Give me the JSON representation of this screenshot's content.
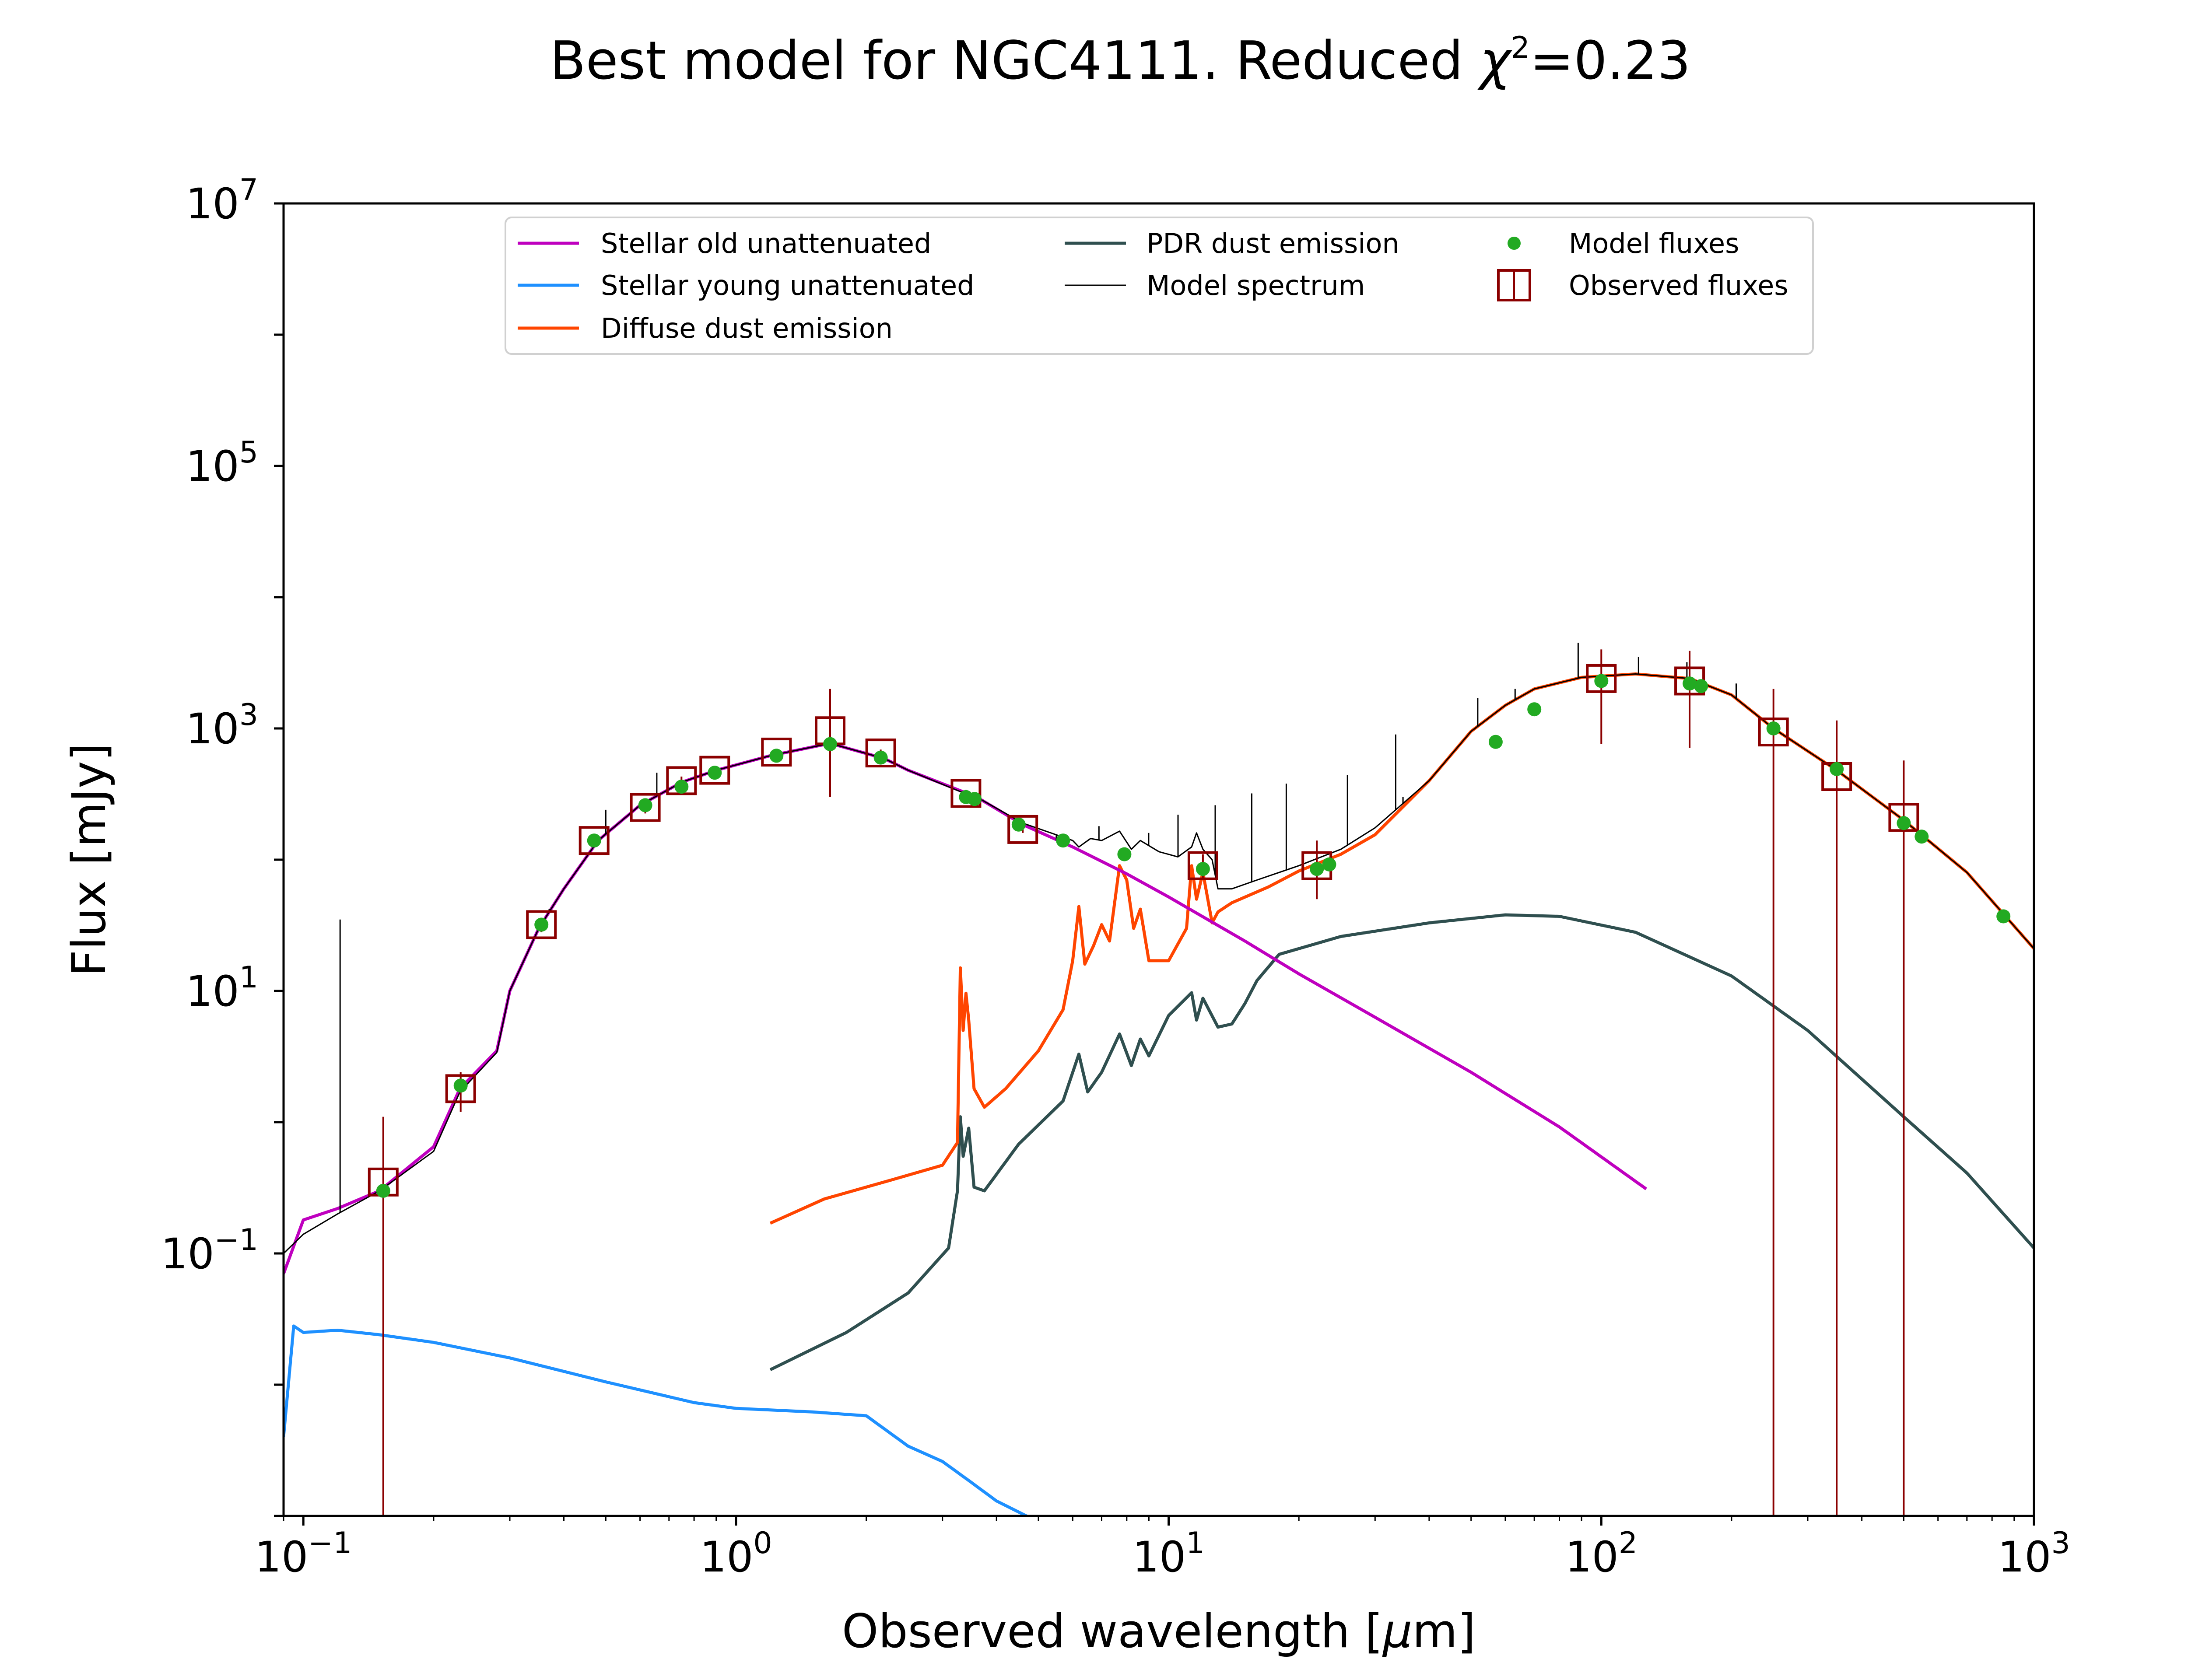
{
  "chart_data": {
    "type": "line",
    "title": "Best model for NGC4111. Reduced χ²=0.23",
    "title_parts": {
      "main": "Best model for NGC4111. Reduced ",
      "chi": "χ",
      "exp": "2",
      "rest": "=0.23"
    },
    "xlabel": "Observed wavelength [μm]",
    "xlabel_parts": {
      "main": "Observed wavelength [",
      "mu": "μ",
      "rest": "m]"
    },
    "ylabel": "Flux [mJy]",
    "xscale": "log",
    "yscale": "log",
    "xlim": [
      0.09,
      1000
    ],
    "ylim": [
      0.001,
      10000000
    ],
    "grid": false,
    "legend_position": "top-center",
    "xticks": [
      {
        "base": "10",
        "exp": "−1",
        "value": 0.1
      },
      {
        "base": "10",
        "exp": "0",
        "value": 1
      },
      {
        "base": "10",
        "exp": "1",
        "value": 10
      },
      {
        "base": "10",
        "exp": "2",
        "value": 100
      },
      {
        "base": "10",
        "exp": "3",
        "value": 1000
      }
    ],
    "yticks": [
      {
        "base": "10",
        "exp": "−1",
        "value": 0.1
      },
      {
        "base": "10",
        "exp": "1",
        "value": 10
      },
      {
        "base": "10",
        "exp": "3",
        "value": 1000
      },
      {
        "base": "10",
        "exp": "5",
        "value": 100000
      },
      {
        "base": "10",
        "exp": "7",
        "value": 10000000
      }
    ],
    "series": [
      {
        "name": "Stellar old unattenuated",
        "color": "#bf00bf",
        "x": [
          0.09,
          0.1,
          0.12,
          0.15,
          0.2,
          0.23,
          0.28,
          0.3,
          0.35,
          0.4,
          0.48,
          0.6,
          0.75,
          0.9,
          1.2,
          1.65,
          2.2,
          2.5,
          3.6,
          4.6,
          6,
          8,
          10,
          15,
          20,
          30,
          50,
          80,
          127
        ],
        "y": [
          0.07,
          0.18,
          0.22,
          0.3,
          0.65,
          1.8,
          3.5,
          10,
          30,
          60,
          140,
          260,
          390,
          480,
          620,
          770,
          590,
          480,
          300,
          185,
          125,
          78,
          52,
          24,
          13.5,
          6.3,
          2.4,
          0.92,
          0.31
        ]
      },
      {
        "name": "Stellar young unattenuated",
        "color": "#1e90ff",
        "x": [
          0.09,
          0.095,
          0.1,
          0.12,
          0.15,
          0.2,
          0.3,
          0.5,
          0.8,
          1.0,
          1.5,
          2.0,
          2.5,
          3.0,
          3.5,
          4.0,
          5.0
        ],
        "y": [
          0.004,
          0.028,
          0.025,
          0.026,
          0.024,
          0.021,
          0.016,
          0.0105,
          0.0073,
          0.0066,
          0.0062,
          0.0058,
          0.0034,
          0.0026,
          0.0018,
          0.0013,
          0.0009
        ]
      },
      {
        "name": "Diffuse dust emission",
        "color": "#ff4500",
        "x": [
          1.2,
          1.6,
          2.2,
          3.0,
          3.25,
          3.3,
          3.35,
          3.4,
          3.45,
          3.55,
          3.75,
          4.2,
          5.0,
          5.7,
          6.0,
          6.2,
          6.4,
          6.7,
          7.0,
          7.3,
          7.7,
          8.0,
          8.3,
          8.6,
          9.0,
          10.0,
          11.0,
          11.3,
          11.6,
          12.0,
          12.6,
          13.0,
          14.0,
          17.0,
          20.0,
          25.0,
          30.0,
          40.0,
          50.0,
          60.0,
          70.0,
          90.0,
          120.0,
          160.0,
          200.0,
          250.0,
          350.0,
          500.0,
          700.0,
          1000.0
        ],
        "y": [
          0.17,
          0.26,
          0.35,
          0.47,
          0.7,
          15,
          5,
          9.6,
          6,
          1.8,
          1.3,
          1.8,
          3.5,
          7.2,
          17,
          44,
          16,
          22,
          32,
          24,
          90,
          70,
          30,
          42,
          17,
          17,
          30,
          90,
          50,
          80,
          33,
          40,
          47,
          62,
          82,
          110,
          155,
          400,
          950,
          1500,
          2000,
          2450,
          2600,
          2400,
          1800,
          1000,
          480,
          200,
          80,
          21
        ]
      },
      {
        "name": "PDR dust emission",
        "color": "#2f4f4f",
        "x": [
          1.2,
          1.8,
          2.5,
          3.1,
          3.25,
          3.3,
          3.35,
          3.45,
          3.55,
          3.75,
          4.5,
          5.7,
          6.2,
          6.5,
          7.0,
          7.7,
          8.2,
          8.6,
          9.0,
          10.0,
          11.3,
          11.6,
          12.0,
          13.0,
          14.0,
          15.0,
          16.0,
          18.0,
          25.0,
          40.0,
          60.0,
          80.0,
          120.0,
          200.0,
          300.0,
          500.0,
          700.0,
          1000.0
        ],
        "y": [
          0.013,
          0.025,
          0.05,
          0.11,
          0.3,
          1.1,
          0.55,
          0.9,
          0.32,
          0.3,
          0.68,
          1.45,
          3.3,
          1.7,
          2.4,
          4.7,
          2.7,
          4.3,
          3.2,
          6.5,
          9.7,
          6,
          8.8,
          5.3,
          5.6,
          8,
          12,
          19,
          26,
          33,
          38,
          37,
          28,
          13,
          5,
          1.1,
          0.41,
          0.11
        ]
      },
      {
        "name": "Model spectrum",
        "color": "#000000",
        "x": [
          0.09,
          0.1,
          0.12,
          0.15,
          0.2,
          0.23,
          0.28,
          0.3,
          0.35,
          0.4,
          0.48,
          0.6,
          0.75,
          0.9,
          1.2,
          1.65,
          2.2,
          2.5,
          3.3,
          3.6,
          4.6,
          6.0,
          6.2,
          6.6,
          7.0,
          7.7,
          8.2,
          8.6,
          9.5,
          10.5,
          11.3,
          11.6,
          12.0,
          12.6,
          13.0,
          14.0,
          16.0,
          20.0,
          25.0,
          30.0,
          40.0,
          50.0,
          60.0,
          70.0,
          90.0,
          120.0,
          160.0,
          200.0,
          250.0,
          350.0,
          500.0,
          700.0,
          1000.0
        ],
        "y": [
          0.1,
          0.14,
          0.2,
          0.3,
          0.6,
          1.7,
          3.4,
          10,
          30,
          60,
          140,
          260,
          390,
          480,
          620,
          770,
          590,
          480,
          330,
          300,
          190,
          140,
          125,
          145,
          140,
          165,
          120,
          140,
          115,
          105,
          125,
          160,
          120,
          100,
          60,
          60,
          70,
          90,
          120,
          175,
          400,
          950,
          1500,
          2000,
          2450,
          2600,
          2400,
          1800,
          1000,
          480,
          200,
          80,
          21
        ]
      }
    ],
    "emission_lines": {
      "name": "Model spectrum lines",
      "x": [
        0.1216,
        0.37,
        0.5,
        0.656,
        5.5,
        6.9,
        8.99,
        10.51,
        12.81,
        15.56,
        18.7,
        25.9,
        33.48,
        34.8,
        51.8,
        63.2,
        88.4,
        121.9,
        157.7,
        205.0
      ],
      "ytop": [
        35,
        42,
        240,
        460,
        140,
        180,
        160,
        220,
        260,
        320,
        380,
        440,
        900,
        300,
        1700,
        2000,
        4500,
        3500,
        3200,
        2200
      ]
    },
    "model_fluxes": {
      "name": "Model fluxes",
      "color": "#22aa22",
      "x": [
        0.153,
        0.231,
        0.355,
        0.47,
        0.617,
        0.748,
        0.893,
        1.24,
        1.65,
        2.16,
        3.4,
        3.56,
        4.5,
        5.7,
        7.9,
        12.0,
        22.0,
        23.5,
        57.0,
        70.0,
        100.0,
        160.0,
        170.0,
        250.0,
        350.0,
        500.0,
        550.0,
        850.0
      ],
      "y": [
        0.3,
        1.9,
        32,
        140,
        260,
        360,
        460,
        620,
        760,
        600,
        300,
        290,
        185,
        140,
        110,
        85,
        85,
        92,
        790,
        1400,
        2300,
        2200,
        2100,
        1000,
        490,
        190,
        150,
        37
      ]
    },
    "observed_fluxes": {
      "name": "Observed fluxes",
      "color": "#8b0000",
      "x": [
        0.153,
        0.231,
        0.355,
        0.47,
        0.617,
        0.748,
        0.893,
        1.24,
        1.65,
        2.16,
        3.4,
        4.6,
        12.0,
        22.0,
        100.0,
        160.0,
        250.0,
        350.0,
        500.0
      ],
      "y": [
        0.35,
        1.8,
        32,
        140,
        250,
        400,
        480,
        660,
        960,
        650,
        320,
        170,
        90,
        90,
        2400,
        2300,
        940,
        430,
        210
      ],
      "err_low": [
        0.001,
        1.2,
        28,
        125,
        225,
        370,
        450,
        620,
        300,
        610,
        300,
        160,
        70,
        50,
        760,
        710,
        0.001,
        0.001,
        0.001
      ],
      "err_high": [
        1.1,
        2.4,
        36,
        155,
        275,
        430,
        510,
        700,
        2000,
        690,
        340,
        180,
        110,
        140,
        4000,
        3900,
        2000,
        1150,
        570
      ]
    }
  }
}
